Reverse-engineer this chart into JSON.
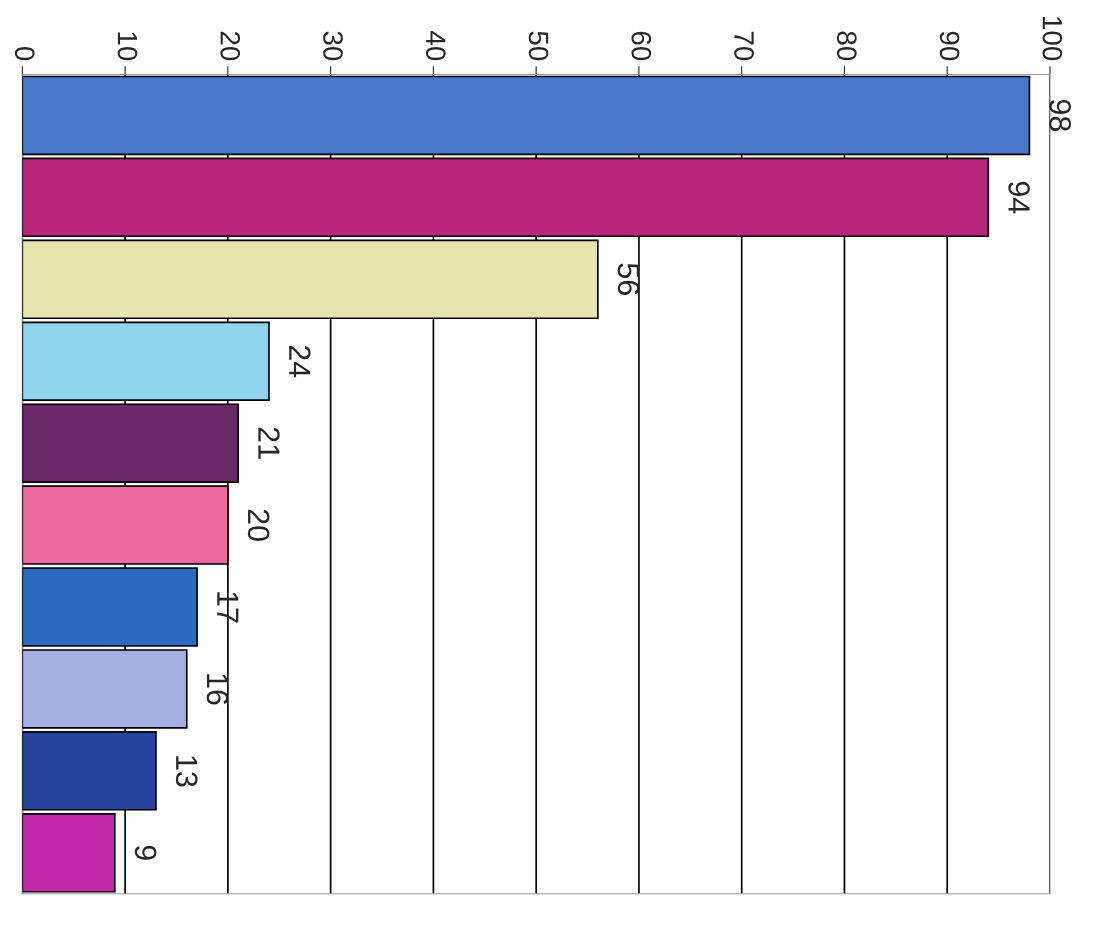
{
  "chart_data": {
    "type": "bar",
    "orientation": "horizontal",
    "categories": [
      null,
      null,
      null,
      null,
      null,
      null,
      null,
      null,
      null,
      null
    ],
    "values": [
      98,
      94,
      56,
      24,
      21,
      20,
      17,
      16,
      13,
      9
    ],
    "colors": [
      "#4a78c8",
      "#b8257a",
      "#e8e4b0",
      "#8fd4ec",
      "#6a2a6a",
      "#ec6aa0",
      "#2a6ac0",
      "#a4b0e0",
      "#28449a",
      "#c02aa8"
    ],
    "xlim": [
      0,
      100
    ],
    "xticks": [
      0,
      10,
      20,
      30,
      40,
      50,
      60,
      70,
      80,
      90,
      100
    ],
    "grid": "x",
    "data_labels": true
  }
}
